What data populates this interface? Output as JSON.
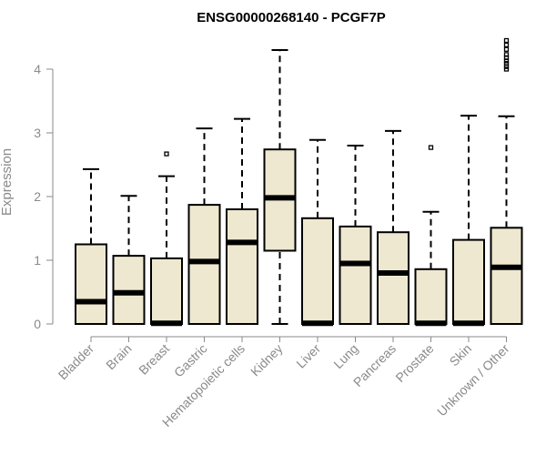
{
  "chart_data": {
    "type": "boxplot",
    "title": "ENSG00000268140 - PCGF7P",
    "xlabel": "",
    "ylabel": "Expression",
    "ylim": [
      0,
      4.6
    ],
    "yticks": [
      0,
      1,
      2,
      3,
      4
    ],
    "grid": false,
    "colors": {
      "box_fill": "#eee8d0",
      "stroke": "#000000",
      "axis": "#8a8a8a"
    },
    "categories": [
      "Bladder",
      "Brain",
      "Breast",
      "Gastric",
      "Hematopoietic cells",
      "Kidney",
      "Liver",
      "Lung",
      "Pancreas",
      "Prostate",
      "Skin",
      "Unknown / Other"
    ],
    "series": [
      {
        "category": "Bladder",
        "min": 0,
        "q1": 0,
        "median": 0.35,
        "q3": 1.25,
        "max": 2.43,
        "outliers": []
      },
      {
        "category": "Brain",
        "min": 0,
        "q1": 0,
        "median": 0.49,
        "q3": 1.07,
        "max": 2.01,
        "outliers": []
      },
      {
        "category": "Breast",
        "min": 0,
        "q1": 0,
        "median": 0.01,
        "q3": 1.03,
        "max": 2.32,
        "outliers": [
          2.67
        ]
      },
      {
        "category": "Gastric",
        "min": 0,
        "q1": 0,
        "median": 0.98,
        "q3": 1.87,
        "max": 3.07,
        "outliers": []
      },
      {
        "category": "Hematopoietic cells",
        "min": 0,
        "q1": 0,
        "median": 1.28,
        "q3": 1.8,
        "max": 3.22,
        "outliers": []
      },
      {
        "category": "Kidney",
        "min": 0,
        "q1": 1.15,
        "median": 1.98,
        "q3": 2.74,
        "max": 4.3,
        "outliers": []
      },
      {
        "category": "Liver",
        "min": 0,
        "q1": 0,
        "median": 0.01,
        "q3": 1.66,
        "max": 2.89,
        "outliers": []
      },
      {
        "category": "Lung",
        "min": 0,
        "q1": 0,
        "median": 0.95,
        "q3": 1.53,
        "max": 2.8,
        "outliers": []
      },
      {
        "category": "Pancreas",
        "min": 0,
        "q1": 0,
        "median": 0.8,
        "q3": 1.44,
        "max": 3.03,
        "outliers": []
      },
      {
        "category": "Prostate",
        "min": 0,
        "q1": 0,
        "median": 0.01,
        "q3": 0.86,
        "max": 1.76,
        "outliers": [
          2.77
        ]
      },
      {
        "category": "Skin",
        "min": 0,
        "q1": 0,
        "median": 0.01,
        "q3": 1.32,
        "max": 3.27,
        "outliers": []
      },
      {
        "category": "Unknown / Other",
        "min": 0,
        "q1": 0,
        "median": 0.89,
        "q3": 1.51,
        "max": 3.26,
        "outliers": [
          4.0,
          4.04,
          4.09,
          4.13,
          4.18,
          4.23,
          4.31,
          4.38,
          4.45
        ]
      }
    ]
  }
}
